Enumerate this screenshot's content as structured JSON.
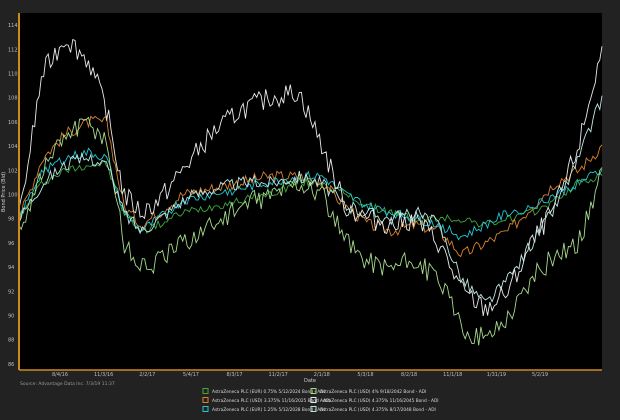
{
  "chart_data": {
    "type": "line",
    "xlabel": "Date",
    "ylabel": "Bond Price (Bid)",
    "source": "Source: Advantage Data Inc. 7/3/19 11:37",
    "ylim": [
      85.5,
      115
    ],
    "y_ticks": [
      86,
      88,
      90,
      92,
      94,
      96,
      98,
      100,
      102,
      104,
      106,
      108,
      110,
      112,
      114
    ],
    "x_ticks": [
      "8/4/16",
      "11/3/16",
      "2/2/17",
      "5/4/17",
      "8/3/17",
      "11/2/17",
      "2/1/18",
      "5/3/18",
      "8/2/18",
      "11/1/18",
      "1/31/19",
      "5/2/19"
    ],
    "grid": false,
    "legend_position": "bottom",
    "series": [
      {
        "name": "AstraZeneca PLC (EUR) 0.75% 5/12/2024 Bond - ADI",
        "color": "#3fa63f",
        "x": [
          0,
          0.04,
          0.08,
          0.12,
          0.15,
          0.18,
          0.21,
          0.24,
          0.28,
          0.33,
          0.38,
          0.43,
          0.48,
          0.52,
          0.56,
          0.6,
          0.64,
          0.68,
          0.72,
          0.76,
          0.8,
          0.84,
          0.88,
          0.92,
          0.96,
          1.0
        ],
        "values": [
          98,
          101,
          102,
          102.5,
          102.5,
          98.5,
          97,
          97.5,
          98.5,
          99,
          99.5,
          100,
          101,
          101,
          100,
          99,
          98.5,
          98,
          98,
          98,
          97.5,
          98,
          98.5,
          99.5,
          101,
          101.5
        ]
      },
      {
        "name": "AstraZeneca PLC (USD) 3.375% 11/16/2025 Bond - ADI",
        "color": "#d9822b",
        "x": [
          0,
          0.04,
          0.08,
          0.12,
          0.15,
          0.18,
          0.21,
          0.24,
          0.28,
          0.33,
          0.38,
          0.43,
          0.48,
          0.52,
          0.56,
          0.6,
          0.64,
          0.68,
          0.72,
          0.76,
          0.8,
          0.84,
          0.88,
          0.92,
          0.96,
          1.0
        ],
        "values": [
          98,
          103,
          105,
          106,
          106,
          99,
          97.5,
          98.5,
          100,
          100.5,
          101,
          101.5,
          101.5,
          101,
          99,
          97.5,
          97,
          97.5,
          97,
          95,
          96,
          97,
          99,
          101,
          102,
          104
        ]
      },
      {
        "name": "AstraZeneca PLC (EUR) 1.25% 5/12/2028 Bond - ADI",
        "color": "#22c7d6",
        "x": [
          0,
          0.04,
          0.08,
          0.12,
          0.15,
          0.18,
          0.21,
          0.24,
          0.28,
          0.33,
          0.38,
          0.43,
          0.48,
          0.52,
          0.56,
          0.6,
          0.64,
          0.68,
          0.72,
          0.76,
          0.8,
          0.84,
          0.88,
          0.92,
          0.96,
          1.0
        ],
        "values": [
          98,
          102,
          103,
          103.5,
          103,
          98.5,
          97,
          98,
          99.5,
          100,
          100.5,
          101,
          101.5,
          101.5,
          100,
          99,
          98.5,
          98,
          97.5,
          96.5,
          97.5,
          98.5,
          99,
          100,
          101,
          102
        ]
      },
      {
        "name": "AstraZeneca PLC (USD) 4% 9/18/2042 Bond - ADI",
        "color": "#a6d98c",
        "x": [
          0,
          0.04,
          0.08,
          0.12,
          0.15,
          0.18,
          0.21,
          0.24,
          0.28,
          0.33,
          0.38,
          0.43,
          0.48,
          0.52,
          0.56,
          0.6,
          0.64,
          0.68,
          0.72,
          0.76,
          0.8,
          0.84,
          0.88,
          0.92,
          0.96,
          1.0
        ],
        "values": [
          97,
          102,
          105,
          106,
          104.5,
          96,
          94,
          94.5,
          96,
          97.5,
          99,
          100,
          101,
          100,
          96,
          94.5,
          94,
          94.5,
          93,
          89,
          88,
          90,
          93,
          95,
          96,
          102
        ]
      },
      {
        "name": "AstraZeneca PLC (USD) 4.375% 11/16/2045 Bond - ADI",
        "color": "#e8e8e8",
        "x": [
          0,
          0.04,
          0.08,
          0.12,
          0.15,
          0.18,
          0.21,
          0.24,
          0.28,
          0.33,
          0.38,
          0.43,
          0.48,
          0.52,
          0.56,
          0.6,
          0.64,
          0.68,
          0.72,
          0.76,
          0.8,
          0.84,
          0.88,
          0.92,
          0.96,
          1.0
        ],
        "values": [
          98,
          110,
          113,
          111,
          107,
          100,
          98.5,
          99.5,
          102,
          105,
          107,
          108,
          108.5,
          104,
          99,
          98,
          97.5,
          98,
          96,
          92,
          90.5,
          92,
          96,
          99,
          104,
          112
        ]
      },
      {
        "name": "AstraZeneca PLC (USD) 4.375% 8/17/2048 Bond - ADI",
        "color": "#bfe6e3",
        "x": [
          0,
          0.04,
          0.08,
          0.12,
          0.15,
          0.18,
          0.21,
          0.24,
          0.28,
          0.33,
          0.38,
          0.43,
          0.48,
          0.52,
          0.56,
          0.6,
          0.64,
          0.68,
          0.72,
          0.76,
          0.8,
          0.84,
          0.88,
          0.92,
          0.96,
          1.0
        ],
        "values": [
          98,
          101,
          102.5,
          103,
          102.5,
          98.5,
          97,
          98,
          99.5,
          100.5,
          101,
          101,
          101.5,
          101,
          99,
          98.5,
          98,
          98.5,
          97.5,
          93,
          91,
          93,
          96,
          99,
          103,
          108
        ]
      }
    ]
  }
}
